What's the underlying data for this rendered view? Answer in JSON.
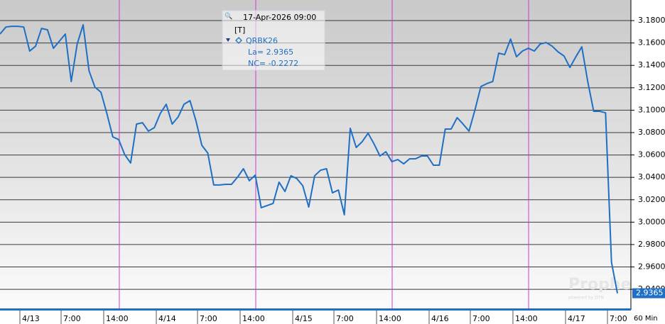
{
  "chart_data": {
    "type": "line",
    "x": [
      0,
      1,
      2,
      3,
      4,
      5,
      6,
      7,
      8,
      9,
      10,
      11,
      12,
      13,
      14,
      15,
      16,
      17,
      18,
      19,
      20,
      21,
      22,
      23,
      24,
      25,
      26,
      27,
      28,
      29,
      30,
      31,
      32,
      33,
      34,
      35,
      36,
      37,
      38,
      39,
      40,
      41,
      42,
      43,
      44,
      45,
      46,
      47,
      48,
      49,
      50,
      51,
      52,
      53,
      54,
      55,
      56,
      57,
      58,
      59,
      60,
      61,
      62,
      63,
      64,
      65,
      66,
      67,
      68,
      69,
      70,
      71,
      72,
      73,
      74,
      75,
      76,
      77,
      78,
      79,
      80,
      81,
      82,
      83,
      84,
      85,
      86,
      87,
      88,
      89,
      90,
      91,
      92,
      93,
      94,
      95,
      96,
      97,
      98,
      99,
      100,
      101,
      102,
      103,
      104
    ],
    "values": [
      3.168,
      3.1743,
      3.1749,
      3.1749,
      3.1743,
      3.1528,
      3.1572,
      3.173,
      3.1718,
      3.1553,
      3.1616,
      3.168,
      3.1256,
      3.1591,
      3.1762,
      3.1351,
      3.1205,
      3.1161,
      3.0971,
      3.0762,
      3.0737,
      3.0604,
      3.0528,
      3.0876,
      3.0888,
      3.0813,
      3.0844,
      3.0971,
      3.1053,
      3.0876,
      3.0939,
      3.1053,
      3.1085,
      3.0907,
      3.0686,
      3.0617,
      3.0332,
      3.0332,
      3.0338,
      3.0338,
      3.0401,
      3.0477,
      3.037,
      3.042,
      3.0129,
      3.0148,
      3.0167,
      3.0357,
      3.0274,
      3.0414,
      3.0389,
      3.0325,
      3.0135,
      3.0414,
      3.0464,
      3.0477,
      3.0262,
      3.0287,
      3.0066,
      3.0838,
      3.0667,
      3.0718,
      3.0794,
      3.0699,
      3.0591,
      3.0629,
      3.054,
      3.0559,
      3.0521,
      3.0566,
      3.0566,
      3.0591,
      3.0591,
      3.0509,
      3.0509,
      3.0832,
      3.0832,
      3.0933,
      3.0876,
      3.0813,
      3.1002,
      3.1211,
      3.1237,
      3.1256,
      3.1509,
      3.1496,
      3.1635,
      3.1477,
      3.1528,
      3.1553,
      3.1528,
      3.1591,
      3.1604,
      3.1572,
      3.1521,
      3.1484,
      3.1382,
      3.1477,
      3.1566,
      3.1256,
      3.099,
      3.099,
      3.0977,
      2.9642,
      2.9365
    ],
    "color": "#1f6fc4",
    "xlim": [
      0,
      106.27
    ],
    "xticks": [
      {
        "value": 3.35,
        "label": "4/13"
      },
      {
        "value": 10.29,
        "label": "7:00"
      },
      {
        "value": 17.47,
        "label": "14:00"
      },
      {
        "value": 26.33,
        "label": "4/14"
      },
      {
        "value": 33.27,
        "label": "7:00"
      },
      {
        "value": 40.45,
        "label": "14:00"
      },
      {
        "value": 49.31,
        "label": "4/15"
      },
      {
        "value": 56.25,
        "label": "7:00"
      },
      {
        "value": 63.43,
        "label": "14:00"
      },
      {
        "value": 72.28,
        "label": "4/16"
      },
      {
        "value": 79.22,
        "label": "7:00"
      },
      {
        "value": 86.4,
        "label": "14:00"
      },
      {
        "value": 95.26,
        "label": "4/17"
      },
      {
        "value": 102.32,
        "label": "7:00"
      }
    ],
    "ylim": [
      2.9217,
      3.1984
    ],
    "yticks": [
      {
        "value": 2.94,
        "label": "2.9400"
      },
      {
        "value": 2.96,
        "label": "2.9600"
      },
      {
        "value": 2.98,
        "label": "2.9800"
      },
      {
        "value": 3.0,
        "label": "3.0000"
      },
      {
        "value": 3.02,
        "label": "3.0200"
      },
      {
        "value": 3.04,
        "label": "3.0400"
      },
      {
        "value": 3.06,
        "label": "3.0600"
      },
      {
        "value": 3.08,
        "label": "3.0800"
      },
      {
        "value": 3.1,
        "label": "3.1000"
      },
      {
        "value": 3.12,
        "label": "3.1200"
      },
      {
        "value": 3.14,
        "label": "3.1400"
      },
      {
        "value": 3.16,
        "label": "3.1600"
      },
      {
        "value": 3.18,
        "label": "3.1800"
      }
    ],
    "grid": true,
    "session_lines": [
      20.1,
      43.08,
      66.06,
      89.04
    ],
    "session_color": "#d23ad2",
    "last_label": "2.9365",
    "interval": "60 Min",
    "watermark": "ProphetX",
    "watermark_sub": "powered by DTN",
    "tooltip": {
      "time": "17-Apr-2026 09:00",
      "tag": "[T]",
      "symbol": "QRBK26",
      "la": "La= 2.9365",
      "nc": "NC= -0.2272"
    }
  }
}
